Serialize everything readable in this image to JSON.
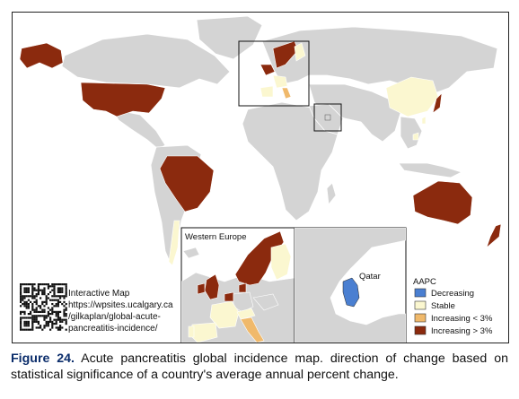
{
  "map": {
    "inset_western_europe_title": "Western Europe",
    "inset_qatar_label": "Qatar",
    "qr_text": [
      "Interactive Map",
      "https://wpsites.ucalgary.ca",
      "/gilkaplan/global-acute-",
      "pancreatitis-incidence/"
    ],
    "legend": {
      "title": "AAPC",
      "items": [
        {
          "label": "Decreasing",
          "color": "#4a7fd1"
        },
        {
          "label": "Stable",
          "color": "#fbf7d0"
        },
        {
          "label": "Increasing < 3%",
          "color": "#f0b96b"
        },
        {
          "label": "Increasing > 3%",
          "color": "#8b2a0e"
        }
      ]
    },
    "colors": {
      "no_data": "#d4d4d4",
      "stable": "#fbf7d0",
      "increasing_low": "#f0b96b",
      "increasing_high": "#8b2a0e",
      "decreasing": "#4a7fd1",
      "border": "#ffffff"
    }
  },
  "caption": {
    "figure_label": "Figure 24.",
    "text": " Acute pancreatitis global incidence map. direction of change based on statistical significance of a country's average annual percent change."
  }
}
